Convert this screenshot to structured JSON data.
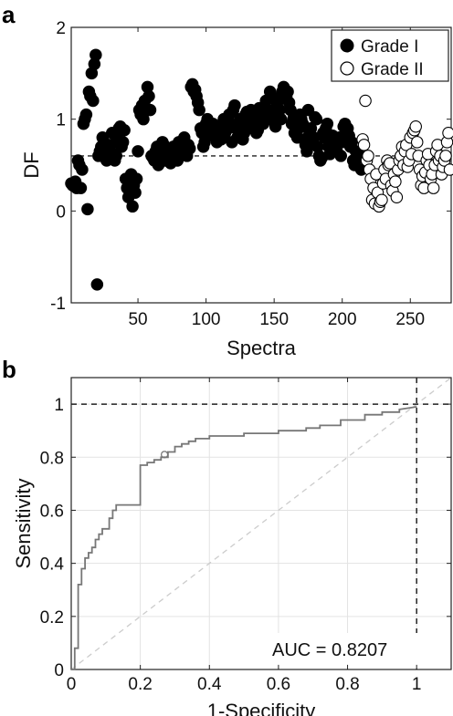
{
  "chart_data": [
    {
      "panel_label": "a",
      "type": "scatter",
      "xlabel": "Spectra",
      "ylabel": "DF",
      "xlim": [
        1,
        280
      ],
      "ylim": [
        -1,
        2
      ],
      "xticks": [
        50,
        100,
        150,
        200,
        250
      ],
      "xtick_labels": [
        "50",
        "100",
        "150",
        "200",
        "250"
      ],
      "yticks": [
        -1,
        0,
        1,
        2
      ],
      "ytick_labels": [
        "-1",
        "0",
        "1",
        "2"
      ],
      "threshold": 0.6,
      "legend_position": "top-right",
      "grid": false,
      "series": [
        {
          "name": "Grade I",
          "marker": "filled-circle",
          "color": "#000000",
          "x": [
            1,
            2,
            3,
            4,
            5,
            6,
            7,
            8,
            9,
            10,
            11,
            12,
            13,
            14,
            15,
            16,
            17,
            18,
            19,
            20,
            21,
            22,
            23,
            24,
            25,
            26,
            27,
            28,
            29,
            30,
            31,
            32,
            33,
            34,
            35,
            36,
            37,
            38,
            39,
            40,
            41,
            42,
            43,
            44,
            45,
            46,
            47,
            48,
            49,
            50,
            51,
            52,
            53,
            54,
            55,
            56,
            57,
            58,
            59,
            60,
            61,
            62,
            63,
            64,
            65,
            66,
            67,
            68,
            69,
            70,
            71,
            72,
            73,
            74,
            75,
            76,
            77,
            78,
            79,
            80,
            81,
            82,
            83,
            84,
            85,
            86,
            87,
            88,
            89,
            90,
            91,
            92,
            93,
            94,
            95,
            96,
            97,
            98,
            99,
            100,
            101,
            102,
            103,
            104,
            105,
            106,
            107,
            108,
            109,
            110,
            111,
            112,
            113,
            114,
            115,
            116,
            117,
            118,
            119,
            120,
            121,
            122,
            123,
            124,
            125,
            126,
            127,
            128,
            129,
            130,
            131,
            132,
            133,
            134,
            135,
            136,
            137,
            138,
            139,
            140,
            141,
            142,
            143,
            144,
            145,
            146,
            147,
            148,
            149,
            150,
            151,
            152,
            153,
            154,
            155,
            156,
            157,
            158,
            159,
            160,
            161,
            162,
            163,
            164,
            165,
            166,
            167,
            168,
            169,
            170,
            171,
            172,
            173,
            174,
            175,
            176,
            177,
            178,
            179,
            180,
            181,
            182,
            183,
            184,
            185,
            186,
            187,
            188,
            189,
            190,
            191,
            192,
            193,
            194,
            195,
            196,
            197,
            198,
            199,
            200,
            201,
            202,
            203,
            204,
            205,
            206,
            207,
            208,
            209,
            210,
            211,
            212,
            213,
            214
          ],
          "y": [
            0.3,
            0.28,
            0.27,
            0.32,
            0.25,
            0.55,
            0.5,
            0.25,
            0.45,
            0.95,
            1.0,
            1.05,
            0.02,
            1.3,
            1.25,
            1.5,
            1.2,
            1.6,
            1.7,
            -0.8,
            0.6,
            0.65,
            0.7,
            0.8,
            0.75,
            0.6,
            0.55,
            0.68,
            0.65,
            0.72,
            0.85,
            0.62,
            0.55,
            0.6,
            0.78,
            0.9,
            0.92,
            0.7,
            0.75,
            0.88,
            0.35,
            0.25,
            0.15,
            0.3,
            0.4,
            0.05,
            0.28,
            0.2,
            0.35,
            0.65,
            1.1,
            1.05,
            1.15,
            1.0,
            1.2,
            1.1,
            1.35,
            1.25,
            1.1,
            0.6,
            0.58,
            0.55,
            0.65,
            0.7,
            0.5,
            0.6,
            0.62,
            0.75,
            0.72,
            0.55,
            0.6,
            0.65,
            0.58,
            0.52,
            0.62,
            0.7,
            0.68,
            0.6,
            0.55,
            0.75,
            0.72,
            0.66,
            0.7,
            0.8,
            0.65,
            0.6,
            0.72,
            0.68,
            1.35,
            1.38,
            1.3,
            1.32,
            1.25,
            1.18,
            1.1,
            0.9,
            0.85,
            0.7,
            0.75,
            0.95,
            1.0,
            0.9,
            0.85,
            0.88,
            0.95,
            0.92,
            0.8,
            0.75,
            0.9,
            0.82,
            0.78,
            0.95,
            1.0,
            0.85,
            0.88,
            0.92,
            1.05,
            0.95,
            0.75,
            1.1,
            1.15,
            0.9,
            0.8,
            0.95,
            1.0,
            0.88,
            0.78,
            0.85,
            1.05,
            1.08,
            0.9,
            0.95,
            1.1,
            1.0,
            1.05,
            0.95,
            0.85,
            0.88,
            1.12,
            1.05,
            0.98,
            0.95,
            1.0,
            1.2,
            1.1,
            1.0,
            1.3,
            1.25,
            1.05,
            0.98,
            0.92,
            1.15,
            1.2,
            1.1,
            1.0,
            1.3,
            1.35,
            1.28,
            1.25,
            1.3,
            1.18,
            1.1,
            0.95,
            1.0,
            0.85,
            0.88,
            0.8,
            0.9,
            1.05,
            1.0,
            0.95,
            0.78,
            0.72,
            0.65,
            1.1,
            0.85,
            0.9,
            0.75,
            0.8,
            1.02,
            1.0,
            0.7,
            0.6,
            0.55,
            0.58,
            0.85,
            0.8,
            0.9,
            0.95,
            0.7,
            0.62,
            0.75,
            0.82,
            0.7,
            0.72,
            0.65,
            0.78,
            0.8,
            0.6,
            0.75,
            0.92,
            0.95,
            0.85,
            0.9,
            0.82,
            0.7,
            0.75,
            0.55,
            0.5,
            0.65,
            0.6,
            0.58,
            0.62,
            0.45
          ]
        },
        {
          "name": "Grade II",
          "marker": "open-circle",
          "color": "#000000",
          "x": [
            215,
            216,
            217,
            218,
            219,
            220,
            221,
            222,
            223,
            224,
            225,
            226,
            227,
            228,
            229,
            230,
            231,
            232,
            233,
            234,
            235,
            236,
            237,
            238,
            239,
            240,
            241,
            242,
            243,
            244,
            245,
            246,
            247,
            248,
            249,
            250,
            251,
            252,
            253,
            254,
            255,
            256,
            257,
            258,
            259,
            260,
            261,
            262,
            263,
            264,
            265,
            266,
            267,
            268,
            269,
            270,
            271,
            272,
            273,
            274,
            275,
            276,
            277,
            278,
            279
          ],
          "y": [
            0.78,
            0.72,
            1.2,
            0.55,
            0.6,
            0.45,
            0.35,
            0.12,
            0.25,
            0.08,
            0.4,
            0.2,
            0.05,
            0.1,
            0.12,
            0.3,
            0.45,
            0.35,
            0.55,
            0.5,
            0.52,
            0.28,
            0.22,
            0.4,
            0.32,
            0.15,
            0.45,
            0.55,
            0.6,
            0.7,
            0.5,
            0.65,
            0.72,
            0.48,
            0.55,
            0.8,
            0.62,
            0.85,
            0.88,
            0.92,
            0.75,
            0.6,
            0.45,
            0.28,
            0.38,
            0.25,
            0.42,
            0.55,
            0.62,
            0.5,
            0.35,
            0.4,
            0.25,
            0.5,
            0.65,
            0.72,
            0.55,
            0.6,
            0.4,
            0.48,
            0.55,
            0.6,
            0.75,
            0.85,
            0.45
          ]
        }
      ]
    },
    {
      "panel_label": "b",
      "type": "line",
      "xlabel": "1-Specificity",
      "ylabel": "Sensitivity",
      "xlim": [
        0,
        1.1
      ],
      "ylim": [
        0,
        1.1
      ],
      "xticks": [
        0,
        0.2,
        0.4,
        0.6,
        0.8,
        1
      ],
      "xtick_labels": [
        "0",
        "0.2",
        "0.4",
        "0.6",
        "0.8",
        "1"
      ],
      "yticks": [
        0,
        0.2,
        0.4,
        0.6,
        0.8,
        1
      ],
      "ytick_labels": [
        "0",
        "0.2",
        "0.4",
        "0.6",
        "0.8",
        "1"
      ],
      "grid": true,
      "annotation": "AUC = 0.8207",
      "operating_point": [
        0.27,
        0.81
      ],
      "reference_lines": {
        "x": 1,
        "y": 1
      },
      "series": [
        {
          "name": "ROC",
          "color": "#777777",
          "x": [
            0,
            0.01,
            0.01,
            0.02,
            0.02,
            0.03,
            0.03,
            0.04,
            0.04,
            0.05,
            0.05,
            0.06,
            0.06,
            0.07,
            0.07,
            0.08,
            0.08,
            0.09,
            0.09,
            0.1,
            0.1,
            0.11,
            0.11,
            0.12,
            0.12,
            0.13,
            0.13,
            0.2,
            0.2,
            0.22,
            0.22,
            0.24,
            0.24,
            0.26,
            0.26,
            0.28,
            0.28,
            0.3,
            0.3,
            0.32,
            0.32,
            0.34,
            0.34,
            0.36,
            0.36,
            0.4,
            0.4,
            0.5,
            0.5,
            0.6,
            0.6,
            0.68,
            0.68,
            0.72,
            0.72,
            0.78,
            0.78,
            0.85,
            0.85,
            0.9,
            0.9,
            0.95,
            0.95,
            1.0
          ],
          "y": [
            0,
            0,
            0.08,
            0.08,
            0.32,
            0.32,
            0.38,
            0.38,
            0.42,
            0.42,
            0.44,
            0.44,
            0.46,
            0.46,
            0.49,
            0.49,
            0.51,
            0.51,
            0.53,
            0.53,
            0.53,
            0.53,
            0.57,
            0.57,
            0.6,
            0.6,
            0.62,
            0.62,
            0.77,
            0.77,
            0.78,
            0.78,
            0.79,
            0.79,
            0.8,
            0.8,
            0.82,
            0.82,
            0.84,
            0.84,
            0.85,
            0.85,
            0.86,
            0.86,
            0.87,
            0.87,
            0.88,
            0.88,
            0.89,
            0.89,
            0.9,
            0.9,
            0.91,
            0.91,
            0.92,
            0.92,
            0.94,
            0.94,
            0.96,
            0.96,
            0.97,
            0.97,
            0.98,
            0.99
          ]
        }
      ]
    }
  ]
}
